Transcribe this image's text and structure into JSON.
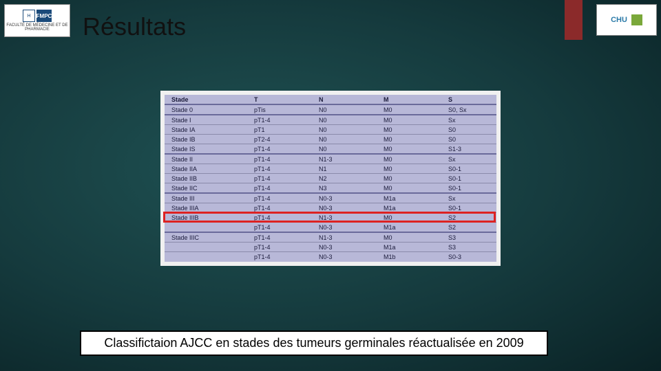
{
  "title": "Résultats",
  "caption": "Classifictaion AJCC en stades des tumeurs germinales réactualisée en 2009",
  "logos": {
    "left_badge": "FMPC",
    "left_sub": "FACULTÉ DE MÉDECINE ET DE PHARMACIE",
    "right_text": "CHU"
  },
  "table": {
    "columns": [
      "Stade",
      "T",
      "N",
      "M",
      "S"
    ],
    "rows": [
      {
        "stade": "Stade 0",
        "t": "pTis",
        "n": "N0",
        "m": "M0",
        "s": "S0, Sx",
        "sep": true
      },
      {
        "stade": "Stade I",
        "t": "pT1-4",
        "n": "N0",
        "m": "M0",
        "s": "Sx",
        "sep": true
      },
      {
        "stade": "Stade IA",
        "t": "pT1",
        "n": "N0",
        "m": "M0",
        "s": "S0",
        "sep": false
      },
      {
        "stade": "Stade IB",
        "t": "pT2-4",
        "n": "N0",
        "m": "M0",
        "s": "S0",
        "sep": false
      },
      {
        "stade": "Stade IS",
        "t": "pT1-4",
        "n": "N0",
        "m": "M0",
        "s": "S1-3",
        "sep": false
      },
      {
        "stade": "Stade II",
        "t": "pT1-4",
        "n": "N1-3",
        "m": "M0",
        "s": "Sx",
        "sep": true
      },
      {
        "stade": "Stade IIA",
        "t": "pT1-4",
        "n": "N1",
        "m": "M0",
        "s": "S0-1",
        "sep": false
      },
      {
        "stade": "Stade IIB",
        "t": "pT1-4",
        "n": "N2",
        "m": "M0",
        "s": "S0-1",
        "sep": false
      },
      {
        "stade": "Stade IIC",
        "t": "pT1-4",
        "n": "N3",
        "m": "M0",
        "s": "S0-1",
        "sep": false
      },
      {
        "stade": "Stade III",
        "t": "pT1-4",
        "n": "N0-3",
        "m": "M1a",
        "s": "Sx",
        "sep": true
      },
      {
        "stade": "Stade IIIA",
        "t": "pT1-4",
        "n": "N0-3",
        "m": "M1a",
        "s": "S0-1",
        "sep": false
      },
      {
        "stade": "Stade IIIB",
        "t": "pT1-4",
        "n": "N1-3",
        "m": "M0",
        "s": "S2",
        "sep": false,
        "highlight": true
      },
      {
        "stade": "",
        "t": "pT1-4",
        "n": "N0-3",
        "m": "M1a",
        "s": "S2",
        "sep": false
      },
      {
        "stade": "Stade IIIC",
        "t": "pT1-4",
        "n": "N1-3",
        "m": "M0",
        "s": "S3",
        "sep": true
      },
      {
        "stade": "",
        "t": "pT1-4",
        "n": "N0-3",
        "m": "M1a",
        "s": "S3",
        "sep": false
      },
      {
        "stade": "",
        "t": "pT1-4",
        "n": "N0-3",
        "m": "M1b",
        "s": "S0-3",
        "sep": false
      }
    ],
    "colors": {
      "cell_bg": "#b8b8d8",
      "border": "#8a8aaa",
      "sep_border": "#6a6a9a",
      "text": "#1a1a3a",
      "highlight_border": "#d22222"
    },
    "font_size": 9
  },
  "accent_color": "#8b2a2a",
  "background_gradient": [
    "#1e5355",
    "#153a3d",
    "#0a2225"
  ]
}
